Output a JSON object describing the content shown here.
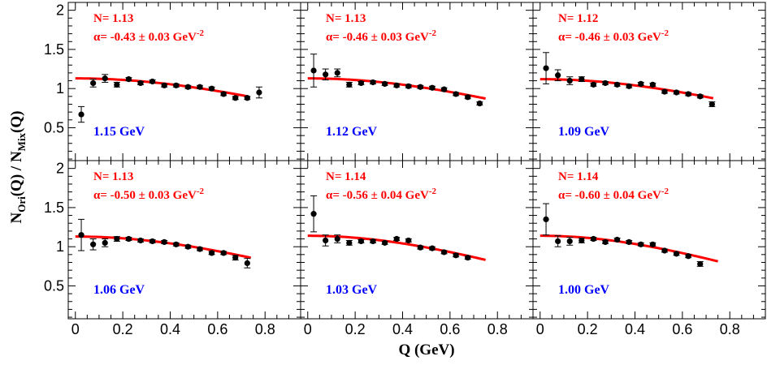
{
  "chart_data": {
    "type": "scatter",
    "layout": "2x3 grid of panels sharing axes",
    "xlabel": "Q (GeV)",
    "ylabel": "N_Ori(Q) / N_Mix(Q)",
    "ylabel_parts": {
      "base1": "N",
      "sub1": "Ori",
      "mid": "(Q) / N",
      "sub2": "Mix",
      "end": "(Q)"
    },
    "xlim": [
      -0.03,
      0.95
    ],
    "ylim": [
      0.08,
      2.1
    ],
    "xticks": [
      0,
      0.2,
      0.4,
      0.6,
      0.8
    ],
    "xtick_labels": [
      "0",
      "0.2",
      "0.4",
      "0.6",
      "0.8"
    ],
    "yticks": [
      0.5,
      1,
      1.5,
      2
    ],
    "ytick_labels": [
      "0.5",
      "1",
      "1.5",
      "2"
    ],
    "colors": {
      "points": "#000000",
      "fit": "#ff0000",
      "annotation": "#ff0000",
      "energy": "#0000ff"
    },
    "panels": [
      {
        "energy": "1.15 GeV",
        "N_text": "N= 1.13",
        "alpha_text": "α= -0.43  ± 0.03 GeV",
        "alpha_exp": "-2",
        "fit": {
          "N": 1.13,
          "alpha": -0.43,
          "xrange": [
            0,
            0.73
          ]
        },
        "points": [
          {
            "x": 0.025,
            "y": 0.67,
            "err": 0.1
          },
          {
            "x": 0.075,
            "y": 1.07,
            "err": 0.05
          },
          {
            "x": 0.125,
            "y": 1.13,
            "err": 0.05
          },
          {
            "x": 0.175,
            "y": 1.05,
            "err": 0.03
          },
          {
            "x": 0.225,
            "y": 1.12,
            "err": 0.02
          },
          {
            "x": 0.275,
            "y": 1.07,
            "err": 0.02
          },
          {
            "x": 0.325,
            "y": 1.09,
            "err": 0.02
          },
          {
            "x": 0.375,
            "y": 1.04,
            "err": 0.02
          },
          {
            "x": 0.425,
            "y": 1.04,
            "err": 0.02
          },
          {
            "x": 0.475,
            "y": 1.02,
            "err": 0.02
          },
          {
            "x": 0.525,
            "y": 1.02,
            "err": 0.02
          },
          {
            "x": 0.575,
            "y": 1.0,
            "err": 0.02
          },
          {
            "x": 0.625,
            "y": 0.93,
            "err": 0.02
          },
          {
            "x": 0.675,
            "y": 0.88,
            "err": 0.02
          },
          {
            "x": 0.725,
            "y": 0.88,
            "err": 0.02
          },
          {
            "x": 0.775,
            "y": 0.95,
            "err": 0.07
          }
        ]
      },
      {
        "energy": "1.12 GeV",
        "N_text": "N= 1.13",
        "alpha_text": "α= -0.46  ± 0.03 GeV",
        "alpha_exp": "-2",
        "fit": {
          "N": 1.13,
          "alpha": -0.46,
          "xrange": [
            0,
            0.75
          ]
        },
        "points": [
          {
            "x": 0.025,
            "y": 1.23,
            "err": 0.21
          },
          {
            "x": 0.075,
            "y": 1.18,
            "err": 0.07
          },
          {
            "x": 0.125,
            "y": 1.2,
            "err": 0.05
          },
          {
            "x": 0.175,
            "y": 1.05,
            "err": 0.03
          },
          {
            "x": 0.225,
            "y": 1.07,
            "err": 0.02
          },
          {
            "x": 0.275,
            "y": 1.08,
            "err": 0.02
          },
          {
            "x": 0.325,
            "y": 1.06,
            "err": 0.02
          },
          {
            "x": 0.375,
            "y": 1.04,
            "err": 0.02
          },
          {
            "x": 0.425,
            "y": 1.03,
            "err": 0.02
          },
          {
            "x": 0.475,
            "y": 1.02,
            "err": 0.02
          },
          {
            "x": 0.525,
            "y": 1.01,
            "err": 0.02
          },
          {
            "x": 0.575,
            "y": 0.99,
            "err": 0.02
          },
          {
            "x": 0.625,
            "y": 0.93,
            "err": 0.02
          },
          {
            "x": 0.675,
            "y": 0.89,
            "err": 0.02
          },
          {
            "x": 0.725,
            "y": 0.81,
            "err": 0.02
          }
        ]
      },
      {
        "energy": "1.09 GeV",
        "N_text": "N= 1.12",
        "alpha_text": "α= -0.46  ± 0.03 GeV",
        "alpha_exp": "-2",
        "fit": {
          "N": 1.12,
          "alpha": -0.46,
          "xrange": [
            0,
            0.73
          ]
        },
        "points": [
          {
            "x": 0.025,
            "y": 1.26,
            "err": 0.2
          },
          {
            "x": 0.075,
            "y": 1.17,
            "err": 0.07
          },
          {
            "x": 0.125,
            "y": 1.1,
            "err": 0.05
          },
          {
            "x": 0.175,
            "y": 1.12,
            "err": 0.03
          },
          {
            "x": 0.225,
            "y": 1.05,
            "err": 0.02
          },
          {
            "x": 0.275,
            "y": 1.07,
            "err": 0.02
          },
          {
            "x": 0.325,
            "y": 1.05,
            "err": 0.02
          },
          {
            "x": 0.375,
            "y": 1.03,
            "err": 0.02
          },
          {
            "x": 0.425,
            "y": 1.06,
            "err": 0.02
          },
          {
            "x": 0.475,
            "y": 1.05,
            "err": 0.02
          },
          {
            "x": 0.525,
            "y": 0.96,
            "err": 0.02
          },
          {
            "x": 0.575,
            "y": 0.95,
            "err": 0.02
          },
          {
            "x": 0.625,
            "y": 0.93,
            "err": 0.02
          },
          {
            "x": 0.675,
            "y": 0.9,
            "err": 0.02
          },
          {
            "x": 0.725,
            "y": 0.8,
            "err": 0.03
          }
        ]
      },
      {
        "energy": "1.06 GeV",
        "N_text": "N= 1.13",
        "alpha_text": "α= -0.50  ± 0.03 GeV",
        "alpha_exp": "-2",
        "fit": {
          "N": 1.13,
          "alpha": -0.5,
          "xrange": [
            0,
            0.74
          ]
        },
        "points": [
          {
            "x": 0.025,
            "y": 1.15,
            "err": 0.2
          },
          {
            "x": 0.075,
            "y": 1.03,
            "err": 0.07
          },
          {
            "x": 0.125,
            "y": 1.05,
            "err": 0.05
          },
          {
            "x": 0.175,
            "y": 1.1,
            "err": 0.03
          },
          {
            "x": 0.225,
            "y": 1.1,
            "err": 0.02
          },
          {
            "x": 0.275,
            "y": 1.08,
            "err": 0.02
          },
          {
            "x": 0.325,
            "y": 1.07,
            "err": 0.02
          },
          {
            "x": 0.375,
            "y": 1.06,
            "err": 0.02
          },
          {
            "x": 0.425,
            "y": 1.03,
            "err": 0.02
          },
          {
            "x": 0.475,
            "y": 1.0,
            "err": 0.02
          },
          {
            "x": 0.525,
            "y": 0.97,
            "err": 0.02
          },
          {
            "x": 0.575,
            "y": 0.92,
            "err": 0.02
          },
          {
            "x": 0.625,
            "y": 0.92,
            "err": 0.02
          },
          {
            "x": 0.675,
            "y": 0.86,
            "err": 0.03
          },
          {
            "x": 0.725,
            "y": 0.79,
            "err": 0.06
          }
        ]
      },
      {
        "energy": "1.03 GeV",
        "N_text": "N= 1.14",
        "alpha_text": "α= -0.56  ± 0.04 GeV",
        "alpha_exp": "-2",
        "fit": {
          "N": 1.14,
          "alpha": -0.56,
          "xrange": [
            0,
            0.75
          ]
        },
        "points": [
          {
            "x": 0.025,
            "y": 1.42,
            "err": 0.23
          },
          {
            "x": 0.075,
            "y": 1.08,
            "err": 0.07
          },
          {
            "x": 0.125,
            "y": 1.1,
            "err": 0.05
          },
          {
            "x": 0.175,
            "y": 1.05,
            "err": 0.03
          },
          {
            "x": 0.225,
            "y": 1.07,
            "err": 0.02
          },
          {
            "x": 0.275,
            "y": 1.07,
            "err": 0.02
          },
          {
            "x": 0.325,
            "y": 1.05,
            "err": 0.02
          },
          {
            "x": 0.375,
            "y": 1.1,
            "err": 0.02
          },
          {
            "x": 0.425,
            "y": 1.08,
            "err": 0.02
          },
          {
            "x": 0.475,
            "y": 0.99,
            "err": 0.02
          },
          {
            "x": 0.525,
            "y": 0.98,
            "err": 0.02
          },
          {
            "x": 0.575,
            "y": 0.93,
            "err": 0.02
          },
          {
            "x": 0.625,
            "y": 0.89,
            "err": 0.02
          },
          {
            "x": 0.675,
            "y": 0.86,
            "err": 0.02
          }
        ]
      },
      {
        "energy": "1.00 GeV",
        "N_text": "N= 1.14",
        "alpha_text": "α= -0.60  ± 0.04 GeV",
        "alpha_exp": "-2",
        "fit": {
          "N": 1.14,
          "alpha": -0.6,
          "xrange": [
            0,
            0.75
          ]
        },
        "points": [
          {
            "x": 0.025,
            "y": 1.35,
            "err": 0.2
          },
          {
            "x": 0.075,
            "y": 1.07,
            "err": 0.07
          },
          {
            "x": 0.125,
            "y": 1.07,
            "err": 0.05
          },
          {
            "x": 0.175,
            "y": 1.08,
            "err": 0.03
          },
          {
            "x": 0.225,
            "y": 1.1,
            "err": 0.02
          },
          {
            "x": 0.275,
            "y": 1.06,
            "err": 0.02
          },
          {
            "x": 0.325,
            "y": 1.09,
            "err": 0.02
          },
          {
            "x": 0.375,
            "y": 1.06,
            "err": 0.02
          },
          {
            "x": 0.425,
            "y": 1.03,
            "err": 0.02
          },
          {
            "x": 0.475,
            "y": 1.03,
            "err": 0.02
          },
          {
            "x": 0.525,
            "y": 0.95,
            "err": 0.02
          },
          {
            "x": 0.575,
            "y": 0.91,
            "err": 0.02
          },
          {
            "x": 0.625,
            "y": 0.88,
            "err": 0.02
          },
          {
            "x": 0.675,
            "y": 0.78,
            "err": 0.03
          }
        ]
      }
    ]
  }
}
